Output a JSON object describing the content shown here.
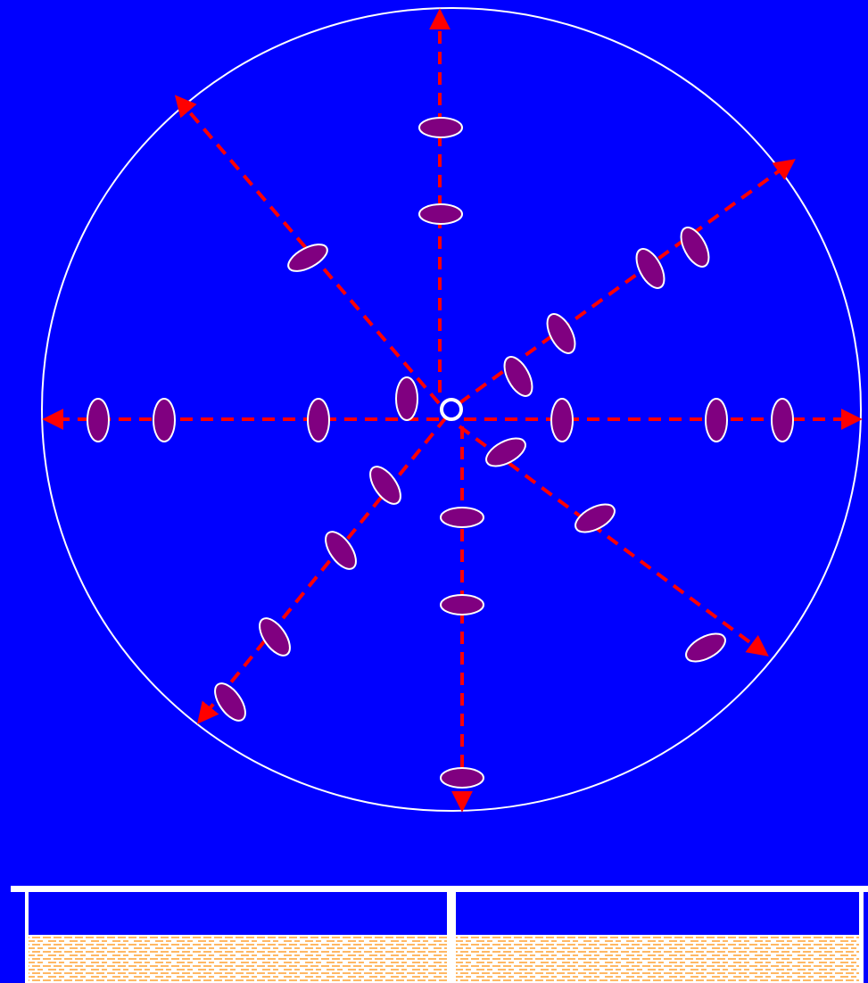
{
  "colors": {
    "background": "#0000ff",
    "outline": "#ffffff",
    "arrow": "#ff0000",
    "particle": "#800080",
    "liquid_stripe": "#ffa030"
  },
  "diagram": {
    "origin_marker": "small-circle",
    "arrow_directions": [
      "up",
      "upper-left",
      "upper-right",
      "left",
      "right",
      "lower-left",
      "down",
      "lower-right"
    ],
    "particle_count": 24,
    "particle_shape": "ellipse",
    "container": "two-compartment-tray-with-liquid"
  }
}
